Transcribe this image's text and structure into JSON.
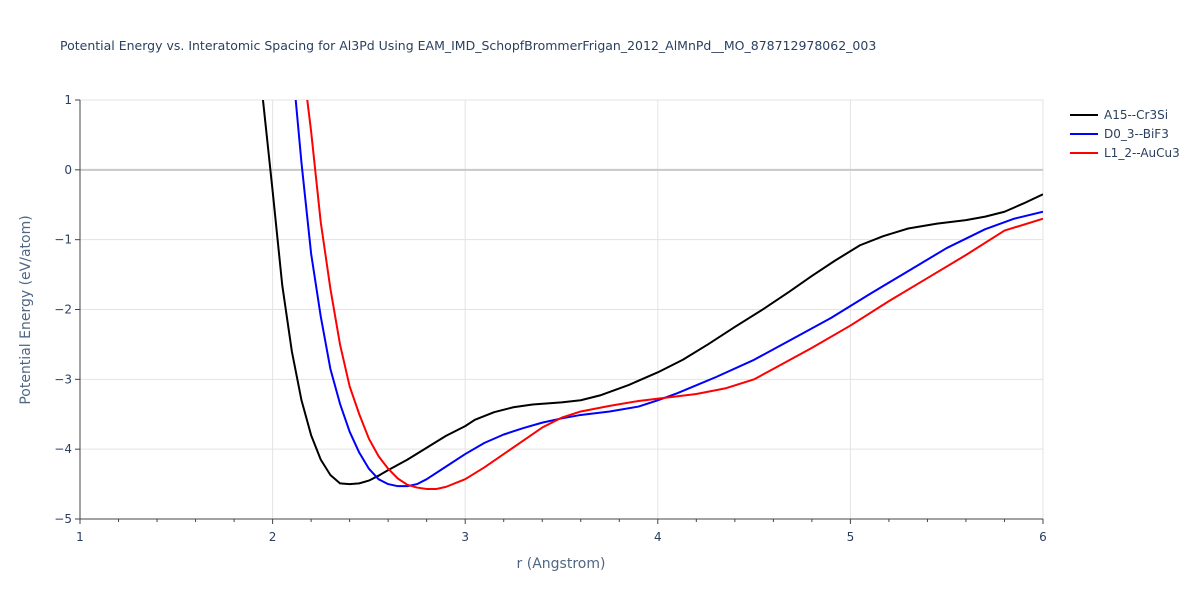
{
  "chart_data": {
    "type": "line",
    "title": "Potential Energy vs. Interatomic Spacing for Al3Pd Using EAM_IMD_SchopfBrommerFrigan_2012_AlMnPd__MO_878712978062_003",
    "xlabel": "r (Angstrom)",
    "ylabel": "Potential Energy (eV/atom)",
    "xlim": [
      1,
      6
    ],
    "ylim": [
      -5,
      1
    ],
    "xticks": [
      1,
      2,
      3,
      4,
      5,
      6
    ],
    "yticks": [
      1,
      0,
      -1,
      -2,
      -3,
      -4,
      -5
    ],
    "ytick_labels": [
      "1",
      "0",
      "−1",
      "−2",
      "−3",
      "−4",
      "−5"
    ],
    "grid": true,
    "legend_position": "top-right, outside plot",
    "series": [
      {
        "name": "A15--Cr3Si",
        "color": "#000000",
        "x": [
          1.95,
          2.0,
          2.05,
          2.1,
          2.15,
          2.2,
          2.25,
          2.3,
          2.35,
          2.4,
          2.45,
          2.5,
          2.55,
          2.6,
          2.7,
          2.8,
          2.9,
          3.0,
          3.05,
          3.15,
          3.25,
          3.35,
          3.5,
          3.6,
          3.7,
          3.85,
          4.0,
          4.13,
          4.26,
          4.4,
          4.55,
          4.68,
          4.8,
          4.92,
          5.05,
          5.17,
          5.3,
          5.45,
          5.6,
          5.7,
          5.8,
          5.9,
          6.0
        ],
        "y": [
          1.0,
          -0.3,
          -1.65,
          -2.6,
          -3.3,
          -3.8,
          -4.15,
          -4.37,
          -4.49,
          -4.5,
          -4.49,
          -4.45,
          -4.38,
          -4.3,
          -4.15,
          -3.98,
          -3.81,
          -3.67,
          -3.58,
          -3.47,
          -3.4,
          -3.36,
          -3.33,
          -3.3,
          -3.23,
          -3.08,
          -2.9,
          -2.72,
          -2.5,
          -2.25,
          -1.99,
          -1.75,
          -1.52,
          -1.3,
          -1.08,
          -0.95,
          -0.84,
          -0.77,
          -0.72,
          -0.67,
          -0.6,
          -0.48,
          -0.35
        ]
      },
      {
        "name": "D0_3--BiF3",
        "color": "#0000ff",
        "x": [
          2.12,
          2.15,
          2.2,
          2.25,
          2.3,
          2.35,
          2.4,
          2.45,
          2.5,
          2.55,
          2.6,
          2.65,
          2.7,
          2.75,
          2.8,
          2.9,
          3.0,
          3.1,
          3.2,
          3.3,
          3.4,
          3.5,
          3.6,
          3.75,
          3.9,
          4.0,
          4.1,
          4.3,
          4.5,
          4.7,
          4.9,
          5.1,
          5.3,
          5.5,
          5.7,
          5.85,
          6.0
        ],
        "y": [
          1.0,
          0.1,
          -1.2,
          -2.1,
          -2.85,
          -3.35,
          -3.75,
          -4.05,
          -4.28,
          -4.43,
          -4.5,
          -4.53,
          -4.53,
          -4.5,
          -4.43,
          -4.25,
          -4.07,
          -3.91,
          -3.79,
          -3.7,
          -3.62,
          -3.56,
          -3.51,
          -3.46,
          -3.39,
          -3.3,
          -3.2,
          -2.97,
          -2.72,
          -2.42,
          -2.12,
          -1.78,
          -1.45,
          -1.12,
          -0.85,
          -0.7,
          -0.6
        ]
      },
      {
        "name": "L1_2--AuCu3",
        "color": "#ff0000",
        "x": [
          2.18,
          2.2,
          2.25,
          2.3,
          2.35,
          2.4,
          2.45,
          2.5,
          2.55,
          2.6,
          2.65,
          2.7,
          2.75,
          2.8,
          2.85,
          2.9,
          3.0,
          3.1,
          3.2,
          3.3,
          3.4,
          3.5,
          3.6,
          3.75,
          3.9,
          4.05,
          4.2,
          4.35,
          4.5,
          4.6,
          4.8,
          5.0,
          5.2,
          5.4,
          5.6,
          5.8,
          6.0
        ],
        "y": [
          1.0,
          0.55,
          -0.75,
          -1.7,
          -2.5,
          -3.1,
          -3.5,
          -3.85,
          -4.1,
          -4.28,
          -4.42,
          -4.51,
          -4.55,
          -4.57,
          -4.57,
          -4.54,
          -4.43,
          -4.26,
          -4.07,
          -3.88,
          -3.69,
          -3.55,
          -3.46,
          -3.38,
          -3.31,
          -3.26,
          -3.21,
          -3.13,
          -3.0,
          -2.85,
          -2.55,
          -2.23,
          -1.88,
          -1.55,
          -1.22,
          -0.87,
          -0.7
        ]
      }
    ]
  }
}
